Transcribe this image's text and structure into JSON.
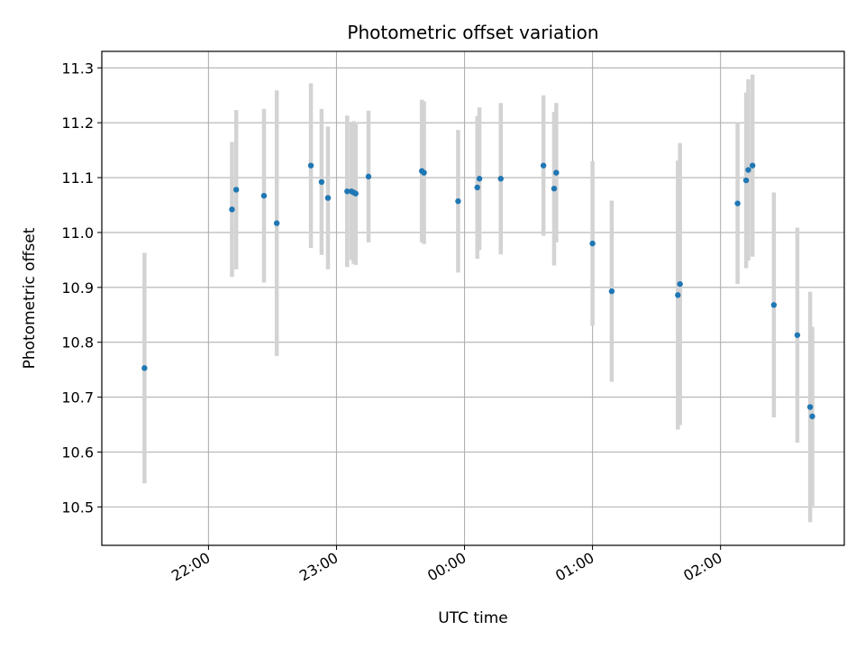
{
  "chart_data": {
    "type": "scatter",
    "title": "Photometric offset variation",
    "xlabel": "UTC time",
    "ylabel": "Photometric offset",
    "x_tick_labels": [
      "22:00",
      "23:00",
      "00:00",
      "01:00",
      "02:00"
    ],
    "x_ticks": [
      "22:00",
      "23:00",
      "00:00",
      "01:00",
      "02:00"
    ],
    "xlim": [
      "21:10",
      "02:58"
    ],
    "y_ticks": [
      10.5,
      10.6,
      10.7,
      10.8,
      10.9,
      11.0,
      11.1,
      11.2,
      11.3
    ],
    "y_tick_labels": [
      "10.5",
      "10.6",
      "10.7",
      "10.8",
      "10.9",
      "11.0",
      "11.1",
      "11.2",
      "11.3"
    ],
    "ylim": [
      10.43,
      11.33
    ],
    "grid": true,
    "marker_color": "#1f77b4",
    "errorbar_color": "#d3d3d3",
    "points": [
      {
        "x": "21:30",
        "y": 10.753,
        "err": 0.21
      },
      {
        "x": "22:11",
        "y": 11.042,
        "err": 0.123
      },
      {
        "x": "22:13",
        "y": 11.078,
        "err": 0.145
      },
      {
        "x": "22:26",
        "y": 11.067,
        "err": 0.158
      },
      {
        "x": "22:32",
        "y": 11.017,
        "err": 0.242
      },
      {
        "x": "22:48",
        "y": 11.122,
        "err": 0.15
      },
      {
        "x": "22:53",
        "y": 11.092,
        "err": 0.133
      },
      {
        "x": "22:56",
        "y": 11.063,
        "err": 0.13
      },
      {
        "x": "23:05",
        "y": 11.075,
        "err": 0.138
      },
      {
        "x": "23:07",
        "y": 11.075,
        "err": 0.125
      },
      {
        "x": "23:08",
        "y": 11.073,
        "err": 0.13
      },
      {
        "x": "23:09",
        "y": 11.071,
        "err": 0.13
      },
      {
        "x": "23:15",
        "y": 11.102,
        "err": 0.12
      },
      {
        "x": "23:40",
        "y": 11.112,
        "err": 0.13
      },
      {
        "x": "23:41",
        "y": 11.109,
        "err": 0.13
      },
      {
        "x": "23:57",
        "y": 11.057,
        "err": 0.13
      },
      {
        "x": "00:06",
        "y": 11.082,
        "err": 0.13
      },
      {
        "x": "00:07",
        "y": 11.098,
        "err": 0.13
      },
      {
        "x": "00:17",
        "y": 11.098,
        "err": 0.138
      },
      {
        "x": "00:37",
        "y": 11.122,
        "err": 0.128
      },
      {
        "x": "00:42",
        "y": 11.08,
        "err": 0.14
      },
      {
        "x": "00:43",
        "y": 11.109,
        "err": 0.127
      },
      {
        "x": "01:00",
        "y": 10.98,
        "err": 0.15
      },
      {
        "x": "01:09",
        "y": 10.893,
        "err": 0.165
      },
      {
        "x": "01:40",
        "y": 10.886,
        "err": 0.245
      },
      {
        "x": "01:41",
        "y": 10.906,
        "err": 0.257
      },
      {
        "x": "02:08",
        "y": 11.053,
        "err": 0.147
      },
      {
        "x": "02:12",
        "y": 11.095,
        "err": 0.16
      },
      {
        "x": "02:13",
        "y": 11.114,
        "err": 0.165
      },
      {
        "x": "02:15",
        "y": 11.122,
        "err": 0.166
      },
      {
        "x": "02:25",
        "y": 10.868,
        "err": 0.205
      },
      {
        "x": "02:36",
        "y": 10.813,
        "err": 0.196
      },
      {
        "x": "02:42",
        "y": 10.682,
        "err": 0.21
      },
      {
        "x": "02:43",
        "y": 10.665,
        "err": 0.163
      }
    ]
  }
}
